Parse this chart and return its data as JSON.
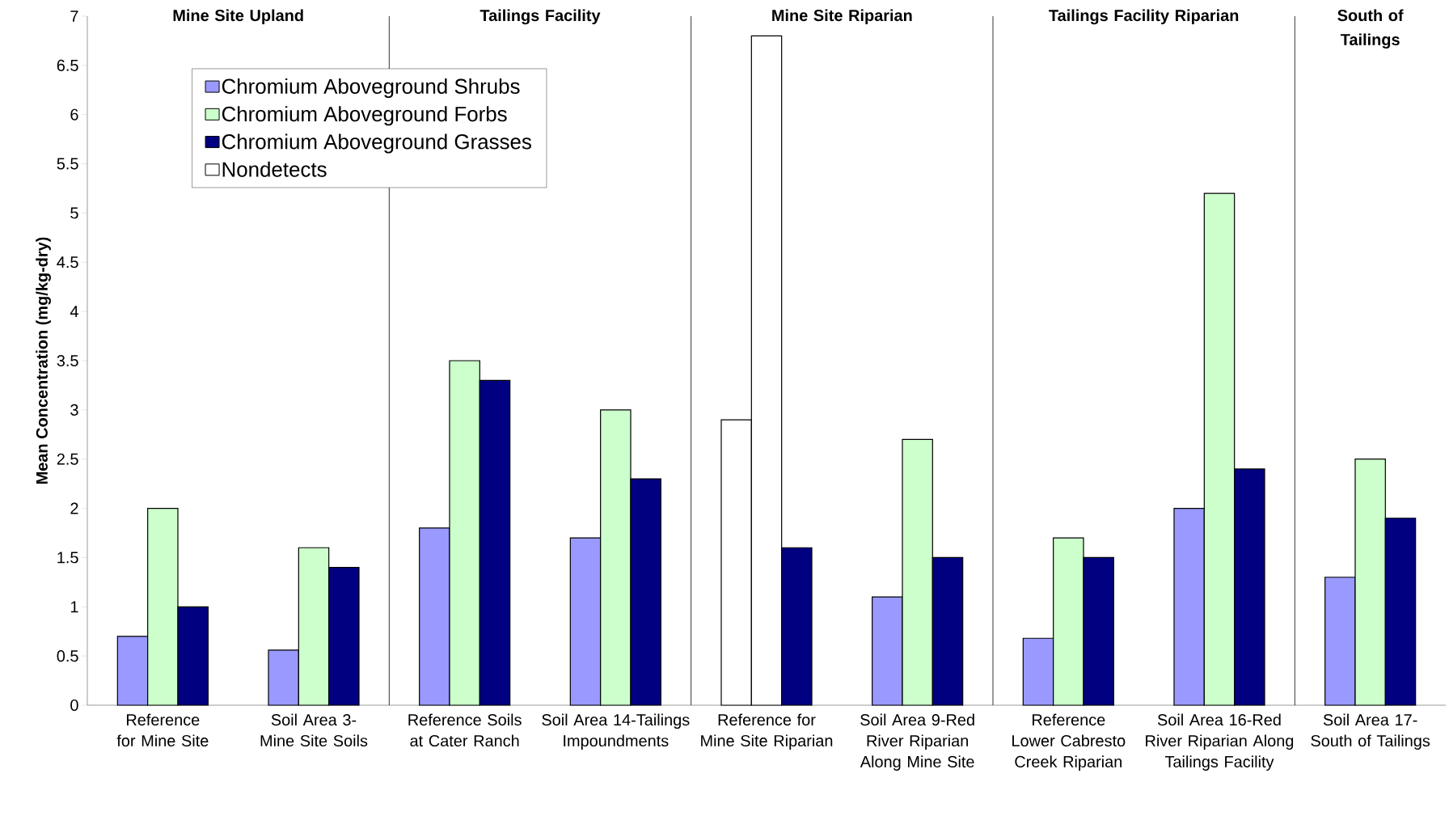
{
  "chart_data": {
    "type": "bar",
    "ylabel": "Mean Concentration (mg/kg-dry)",
    "categories": [
      "Reference for Mine Site",
      "Soil Area 3-Mine Site Soils",
      "Reference Soils at Cater Ranch",
      "Soil Area 14-Tailings Impoundments",
      "Reference for Mine Site Riparian",
      "Soil Area 9-Red River Riparian Along Mine Site",
      "Reference Lower Cabresto Creek Riparian",
      "Soil Area 16-Red River Riparian Along Tailings Facility",
      "Soil Area 17-South of Tailings"
    ],
    "series": [
      {
        "name": "Chromium Aboveground Shrubs",
        "color": "#9999ff",
        "colors": [
          "#9999ff",
          "#9999ff",
          "#9999ff",
          "#9999ff",
          "#ffffff",
          "#9999ff",
          "#9999ff",
          "#9999ff",
          "#9999ff"
        ],
        "values": [
          0.7,
          0.56,
          1.8,
          1.7,
          2.9,
          1.1,
          0.68,
          2.0,
          1.3
        ]
      },
      {
        "name": "Chromium Aboveground Forbs",
        "color": "#ccffcc",
        "colors": [
          "#ccffcc",
          "#ccffcc",
          "#ccffcc",
          "#ccffcc",
          "#ffffff",
          "#ccffcc",
          "#ccffcc",
          "#ccffcc",
          "#ccffcc"
        ],
        "values": [
          2.0,
          1.6,
          3.5,
          3.0,
          6.8,
          2.7,
          1.7,
          5.2,
          2.5
        ]
      },
      {
        "name": "Chromium Aboveground Grasses",
        "color": "#000080",
        "values": [
          1.0,
          1.4,
          3.3,
          2.3,
          1.6,
          1.5,
          1.5,
          2.4,
          1.9
        ]
      },
      {
        "name": "Nondetects",
        "color": "#ffffff",
        "values": [
          null,
          null,
          null,
          null,
          null,
          null,
          null,
          null,
          null
        ]
      }
    ],
    "ylim": [
      0,
      7
    ],
    "yticks": [
      0,
      0.5,
      1,
      1.5,
      2,
      2.5,
      3,
      3.5,
      4,
      4.5,
      5,
      5.5,
      6,
      6.5,
      7
    ],
    "annotations": [
      "Mine Site Upland",
      "Tailings Facility",
      "Mine Site Riparian",
      "Tailings Facility Riparian",
      "South of Tailings"
    ],
    "legend": "top left"
  }
}
